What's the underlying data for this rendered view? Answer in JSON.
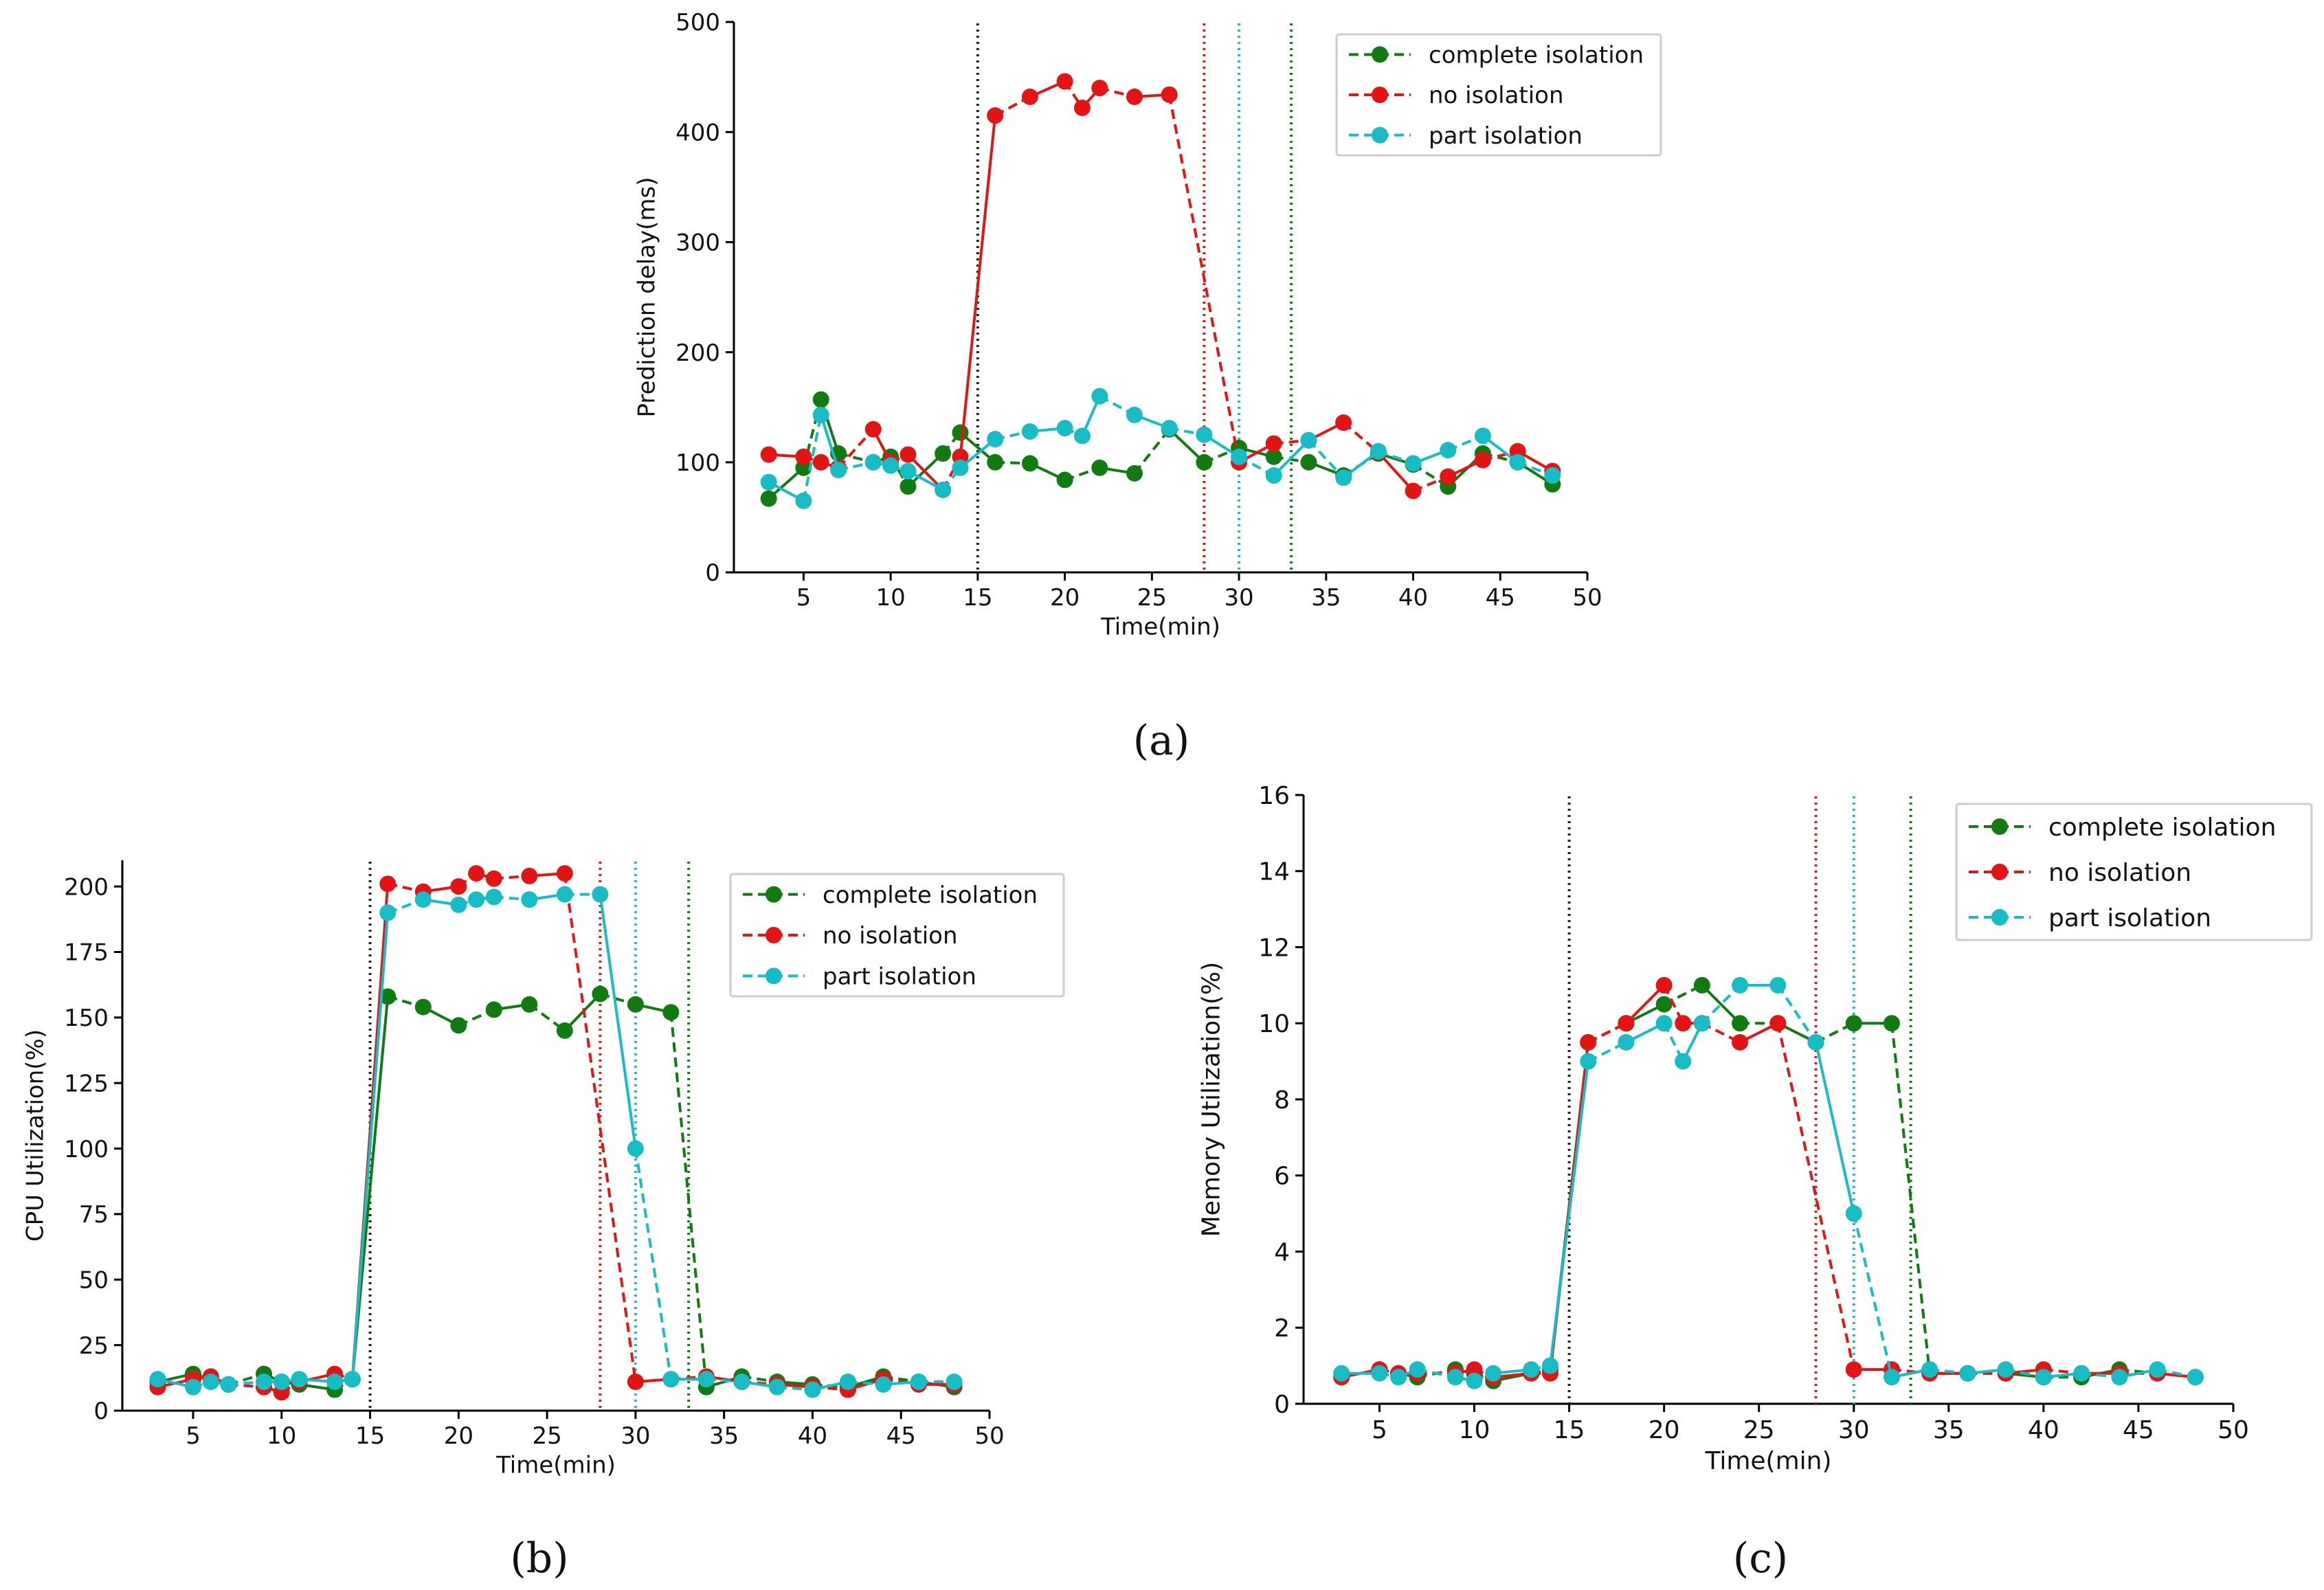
{
  "colors": {
    "complete": "#117a11",
    "none": "#e31414",
    "part": "#17bcc4",
    "marker_black": "#222222"
  },
  "chart_data": [
    {
      "id": "a",
      "type": "line",
      "caption": "(a)",
      "xlabel": "Time(min)",
      "ylabel": "Prediction delay(ms)",
      "xlim": [
        1,
        50
      ],
      "ylim": [
        0,
        500
      ],
      "xticks": [
        5,
        10,
        15,
        20,
        25,
        30,
        35,
        40,
        45,
        50
      ],
      "yticks": [
        0,
        100,
        200,
        300,
        400,
        500
      ],
      "legend_position": "top-right",
      "vlines": [
        {
          "x": 15,
          "color": "marker_black"
        },
        {
          "x": 28,
          "color": "none"
        },
        {
          "x": 30,
          "color": "part"
        },
        {
          "x": 33,
          "color": "complete"
        }
      ],
      "series": [
        {
          "name": "complete isolation",
          "color": "complete",
          "x": [
            3,
            5,
            6,
            7,
            9,
            10,
            11,
            13,
            14,
            16,
            18,
            20,
            22,
            24,
            26,
            28,
            30,
            32,
            34,
            36,
            38,
            40,
            42,
            44,
            46,
            48
          ],
          "y": [
            67,
            95,
            157,
            108,
            100,
            105,
            78,
            108,
            127,
            100,
            99,
            84,
            95,
            90,
            130,
            100,
            113,
            105,
            100,
            88,
            108,
            98,
            78,
            108,
            100,
            80
          ]
        },
        {
          "name": "no isolation",
          "color": "none",
          "x": [
            3,
            5,
            6,
            7,
            9,
            10,
            11,
            13,
            14,
            16,
            18,
            20,
            21,
            22,
            24,
            26,
            30,
            32,
            34,
            36,
            38,
            40,
            42,
            44,
            46,
            48
          ],
          "y": [
            107,
            105,
            100,
            95,
            130,
            100,
            107,
            75,
            105,
            415,
            432,
            446,
            422,
            440,
            432,
            434,
            100,
            117,
            120,
            136,
            109,
            74,
            87,
            102,
            110,
            92
          ]
        },
        {
          "name": "part isolation",
          "color": "part",
          "x": [
            3,
            5,
            6,
            7,
            9,
            10,
            11,
            13,
            14,
            16,
            18,
            20,
            21,
            22,
            24,
            26,
            28,
            30,
            32,
            34,
            36,
            38,
            40,
            42,
            44,
            46,
            48
          ],
          "y": [
            82,
            65,
            143,
            93,
            100,
            97,
            92,
            75,
            95,
            121,
            128,
            131,
            124,
            160,
            143,
            131,
            125,
            105,
            88,
            120,
            86,
            110,
            99,
            111,
            124,
            100,
            88
          ]
        }
      ]
    },
    {
      "id": "b",
      "type": "line",
      "caption": "(b)",
      "xlabel": "Time(min)",
      "ylabel": "CPU Utilization(%)",
      "xlim": [
        1,
        50
      ],
      "ylim": [
        0,
        210
      ],
      "xticks": [
        5,
        10,
        15,
        20,
        25,
        30,
        35,
        40,
        45,
        50
      ],
      "yticks": [
        0,
        25,
        50,
        75,
        100,
        125,
        150,
        175,
        200
      ],
      "legend_position": "top-right",
      "vlines": [
        {
          "x": 15,
          "color": "marker_black"
        },
        {
          "x": 28,
          "color": "none"
        },
        {
          "x": 30,
          "color": "part"
        },
        {
          "x": 33,
          "color": "complete"
        }
      ],
      "series": [
        {
          "name": "complete isolation",
          "color": "complete",
          "x": [
            3,
            5,
            6,
            7,
            9,
            10,
            11,
            13,
            14,
            16,
            18,
            20,
            22,
            24,
            26,
            28,
            30,
            32,
            34,
            36,
            38,
            40,
            42,
            44,
            46,
            48
          ],
          "y": [
            11,
            14,
            12,
            10,
            14,
            11,
            10,
            8,
            12,
            158,
            154,
            147,
            153,
            155,
            145,
            159,
            155,
            152,
            9,
            13,
            11,
            10,
            9,
            13,
            11,
            9
          ]
        },
        {
          "name": "no isolation",
          "color": "none",
          "x": [
            3,
            5,
            6,
            7,
            9,
            10,
            11,
            13,
            14,
            16,
            18,
            20,
            21,
            22,
            24,
            26,
            30,
            32,
            34,
            36,
            38,
            40,
            42,
            44,
            46,
            48
          ],
          "y": [
            9,
            12,
            13,
            10,
            9,
            7,
            11,
            14,
            12,
            201,
            198,
            200,
            205,
            203,
            204,
            205,
            11,
            12,
            13,
            11,
            10,
            9,
            8,
            12,
            10,
            10
          ]
        },
        {
          "name": "part isolation",
          "color": "part",
          "x": [
            3,
            5,
            6,
            7,
            9,
            10,
            11,
            13,
            14,
            16,
            18,
            20,
            21,
            22,
            24,
            26,
            28,
            30,
            32,
            34,
            36,
            38,
            40,
            42,
            44,
            46,
            48
          ],
          "y": [
            12,
            9,
            11,
            10,
            11,
            11,
            12,
            11,
            12,
            190,
            195,
            193,
            195,
            196,
            195,
            197,
            197,
            100,
            12,
            12,
            11,
            9,
            8,
            11,
            10,
            11,
            11
          ]
        }
      ]
    },
    {
      "id": "c",
      "type": "line",
      "caption": "(c)",
      "xlabel": "Time(min)",
      "ylabel": "Memory Utilization(%)",
      "xlim": [
        1,
        50
      ],
      "ylim": [
        0,
        16
      ],
      "xticks": [
        5,
        10,
        15,
        20,
        25,
        30,
        35,
        40,
        45,
        50
      ],
      "yticks": [
        0,
        2,
        4,
        6,
        8,
        10,
        12,
        14,
        16
      ],
      "legend_position": "top-right",
      "vlines": [
        {
          "x": 15,
          "color": "marker_black"
        },
        {
          "x": 28,
          "color": "none"
        },
        {
          "x": 30,
          "color": "part"
        },
        {
          "x": 33,
          "color": "complete"
        }
      ],
      "series": [
        {
          "name": "complete isolation",
          "color": "complete",
          "x": [
            3,
            5,
            6,
            7,
            9,
            10,
            11,
            13,
            14,
            16,
            18,
            20,
            22,
            24,
            26,
            28,
            30,
            32,
            34,
            36,
            38,
            40,
            42,
            44,
            46,
            48
          ],
          "y": [
            0.7,
            0.9,
            0.8,
            0.7,
            0.9,
            0.8,
            0.6,
            0.8,
            0.9,
            9.5,
            10.0,
            10.5,
            11.0,
            10.0,
            10.0,
            9.5,
            10.0,
            10.0,
            0.8,
            0.8,
            0.8,
            0.7,
            0.7,
            0.9,
            0.8,
            0.7
          ]
        },
        {
          "name": "no isolation",
          "color": "none",
          "x": [
            3,
            5,
            6,
            7,
            9,
            10,
            11,
            13,
            14,
            16,
            18,
            20,
            21,
            22,
            24,
            26,
            30,
            32,
            34,
            36,
            38,
            40,
            42,
            44,
            46,
            48
          ],
          "y": [
            0.7,
            0.9,
            0.8,
            0.8,
            0.8,
            0.9,
            0.7,
            0.8,
            0.8,
            9.5,
            10.0,
            11.0,
            10.0,
            10.0,
            9.5,
            10.0,
            0.9,
            0.9,
            0.8,
            0.8,
            0.8,
            0.9,
            0.8,
            0.8,
            0.8,
            0.7
          ]
        },
        {
          "name": "part isolation",
          "color": "part",
          "x": [
            3,
            5,
            6,
            7,
            9,
            10,
            11,
            13,
            14,
            16,
            18,
            20,
            21,
            22,
            24,
            26,
            28,
            30,
            32,
            34,
            36,
            38,
            40,
            42,
            44,
            46,
            48
          ],
          "y": [
            0.8,
            0.8,
            0.7,
            0.9,
            0.7,
            0.6,
            0.8,
            0.9,
            1.0,
            9.0,
            9.5,
            10.0,
            9.0,
            10.0,
            11.0,
            11.0,
            9.5,
            5.0,
            0.7,
            0.9,
            0.8,
            0.9,
            0.7,
            0.8,
            0.7,
            0.9,
            0.7
          ]
        }
      ]
    }
  ]
}
